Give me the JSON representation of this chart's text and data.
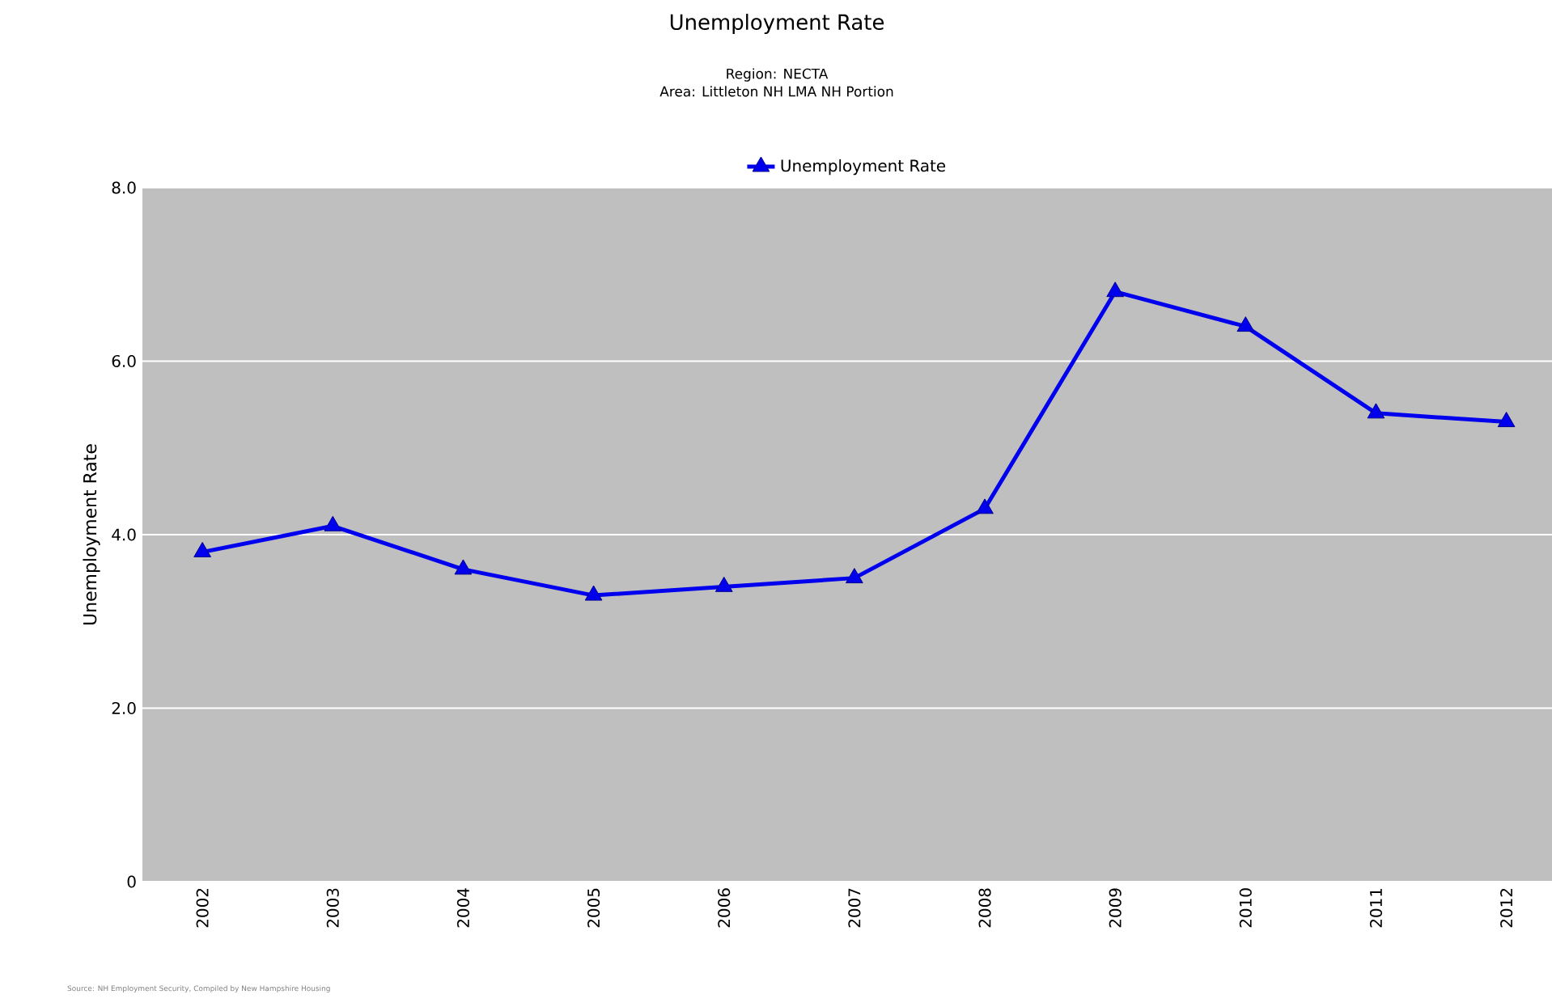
{
  "chart_data": {
    "type": "line",
    "title": "Unemployment Rate",
    "subtitle": "Region: NECTA\nArea: Littleton NH LMA NH Portion",
    "ylabel": "Unemployment Rate",
    "categories": [
      "2002",
      "2003",
      "2004",
      "2005",
      "2006",
      "2007",
      "2008",
      "2009",
      "2010",
      "2011",
      "2012"
    ],
    "series": [
      {
        "name": "Unemployment Rate",
        "color": "#0000ee",
        "values": [
          3.8,
          4.1,
          3.6,
          3.3,
          3.4,
          3.5,
          4.3,
          6.8,
          6.4,
          5.4,
          5.3
        ]
      }
    ],
    "ylim": [
      0,
      8
    ],
    "yticks": [
      {
        "value": 0,
        "label": "0"
      },
      {
        "value": 2,
        "label": "2.0"
      },
      {
        "value": 4,
        "label": "4.0"
      },
      {
        "value": 6,
        "label": "6.0"
      },
      {
        "value": 8,
        "label": "8.0"
      }
    ],
    "grid": "y",
    "legend": "top",
    "marker": "triangle",
    "line_style": "solid",
    "annotations": [
      "Source: NH Employment Security, Compiled by New Hampshire Housing"
    ]
  }
}
